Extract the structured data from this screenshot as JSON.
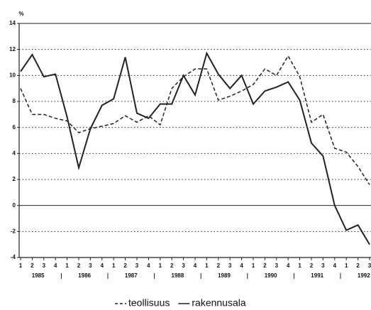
{
  "chart_data": {
    "type": "line",
    "y_axis_label": "%",
    "categories": [
      "1",
      "2",
      "3",
      "4",
      "1",
      "2",
      "3",
      "4",
      "1",
      "2",
      "3",
      "4",
      "1",
      "2",
      "3",
      "4",
      "1",
      "2",
      "3",
      "4",
      "1",
      "2",
      "3",
      "4",
      "1",
      "2",
      "3",
      "4",
      "1",
      "2",
      "3"
    ],
    "years": [
      "1985",
      "1986",
      "1987",
      "1988",
      "1989",
      "1990",
      "1991",
      "1992"
    ],
    "series": [
      {
        "name": "teollisuus",
        "color": "#222222",
        "dashed": true,
        "values": [
          9.0,
          7.0,
          7.0,
          6.7,
          6.5,
          5.6,
          5.9,
          6.1,
          6.3,
          6.9,
          6.4,
          6.9,
          6.2,
          9.0,
          9.9,
          10.5,
          10.5,
          8.1,
          8.4,
          8.8,
          9.3,
          10.5,
          10.0,
          11.5,
          9.9,
          6.4,
          7.0,
          4.4,
          4.1,
          3.0,
          1.6
        ]
      },
      {
        "name": "rakennusala",
        "color": "#222222",
        "dashed": false,
        "values": [
          10.3,
          11.6,
          9.9,
          10.1,
          6.8,
          2.9,
          5.9,
          7.7,
          8.2,
          11.4,
          7.1,
          6.7,
          7.8,
          7.8,
          10.0,
          8.5,
          11.7,
          10.1,
          9.0,
          10.0,
          7.8,
          8.8,
          9.1,
          9.5,
          8.1,
          4.8,
          3.8,
          0.0,
          -1.9,
          -1.5,
          -3.0
        ]
      }
    ],
    "ylim": [
      -4,
      14
    ],
    "yticks": [
      -4,
      -2,
      0,
      2,
      4,
      6,
      8,
      10,
      12,
      14
    ],
    "grid": true
  }
}
